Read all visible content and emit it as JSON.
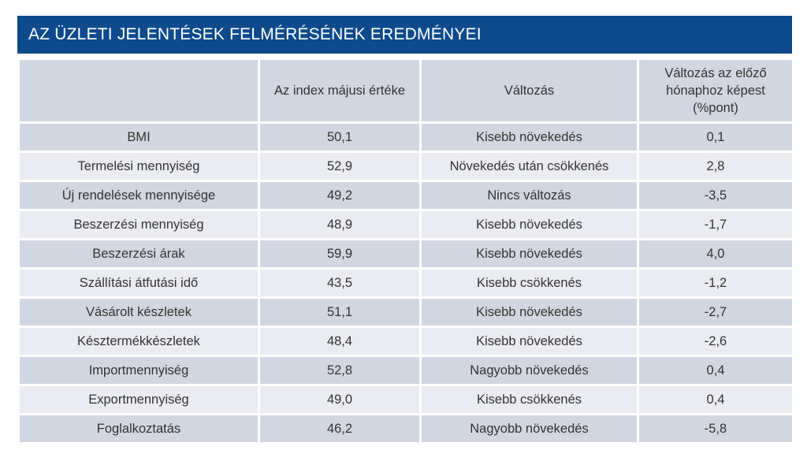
{
  "title": "AZ ÜZLETI JELENTÉSEK FELMÉRÉSÉNEK EREDMÉNYEI",
  "columns": [
    "",
    "Az index májusi értéke",
    "Változás",
    "Változás az előző hónaphoz képest (%pont)"
  ],
  "rows": [
    [
      "BMI",
      "50,1",
      "Kisebb növekedés",
      "0,1"
    ],
    [
      "Termelési mennyiség",
      "52,9",
      "Növekedés után csökkenés",
      "2,8"
    ],
    [
      "Új rendelések mennyisége",
      "49,2",
      "Nincs változás",
      "-3,5"
    ],
    [
      "Beszerzési mennyiség",
      "48,9",
      "Kisebb növekedés",
      "-1,7"
    ],
    [
      "Beszerzési árak",
      "59,9",
      "Kisebb növekedés",
      "4,0"
    ],
    [
      "Szállítási átfutási idő",
      "43,5",
      "Kisebb csökkenés",
      "-1,2"
    ],
    [
      "Vásárolt készletek",
      "51,1",
      "Kisebb növekedés",
      "-2,7"
    ],
    [
      "Késztermékkészletek",
      "48,4",
      "Kisebb növekedés",
      "-2,6"
    ],
    [
      "Importmennyiség",
      "52,8",
      "Nagyobb növekedés",
      "0,4"
    ],
    [
      "Exportmennyiség",
      "49,0",
      "Kisebb csökkenés",
      "0,4"
    ],
    [
      "Foglalkoztatás",
      "46,2",
      "Nagyobb növekedés",
      "-5,8"
    ]
  ],
  "colors": {
    "title_bar": "#0e4a8c",
    "row_dark": "#d2d6e0",
    "row_light": "#eaecf1"
  }
}
